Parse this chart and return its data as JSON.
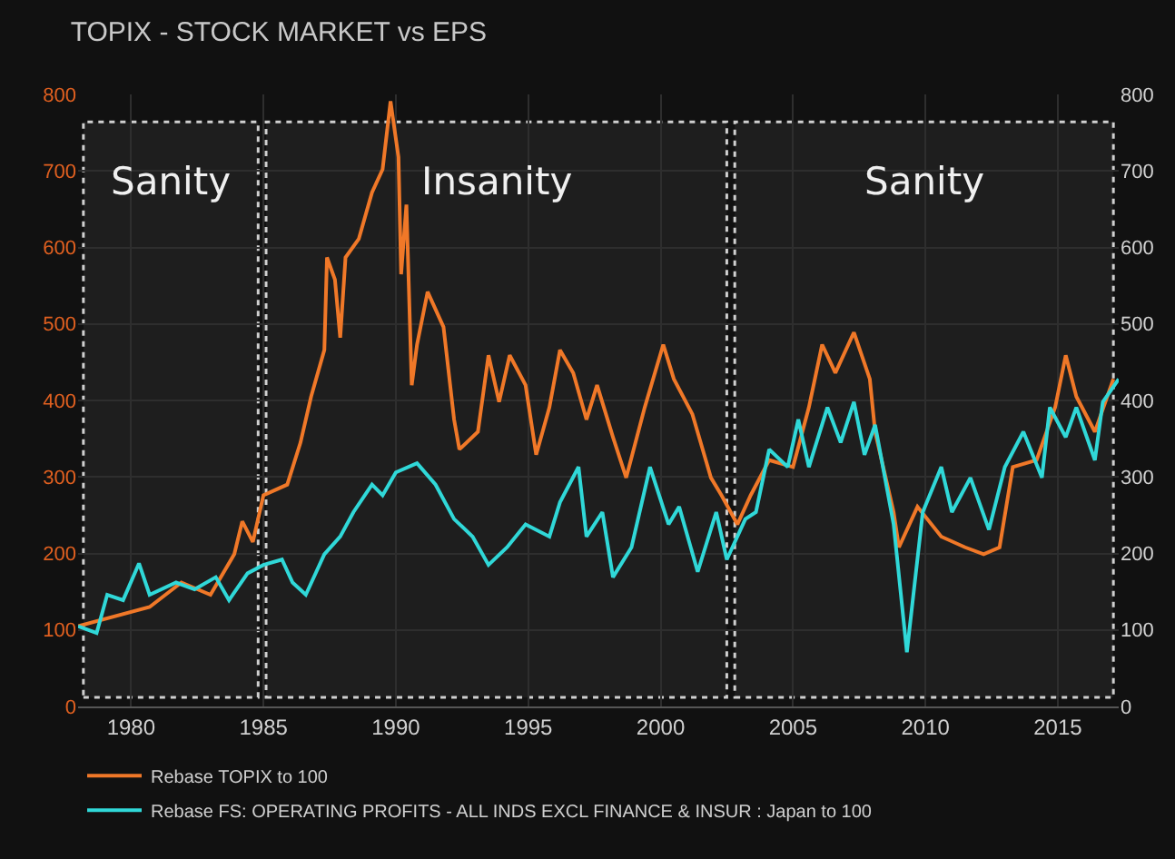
{
  "chart_data": {
    "type": "line",
    "title": "TOPIX - STOCK MARKET vs EPS",
    "xlim": [
      1978,
      2017.3
    ],
    "xticks": [
      1980,
      1985,
      1990,
      1995,
      2000,
      2005,
      2010,
      2015
    ],
    "ylim": [
      0,
      800
    ],
    "yticks": [
      0,
      100,
      200,
      300,
      400,
      500,
      600,
      700,
      800
    ],
    "y2lim": [
      0,
      800
    ],
    "y2ticks": [
      0,
      100,
      200,
      300,
      400,
      500,
      600,
      700,
      800
    ],
    "grid": true,
    "legend": "bottom",
    "line_style": "solid",
    "bands": [
      {
        "axis": "x",
        "from": 1978.2,
        "to": 1984.8,
        "label": "Sanity",
        "color": "#d0d0d0"
      },
      {
        "axis": "x",
        "from": 1985.1,
        "to": 2002.5,
        "label": "Insanity",
        "color": "#d0d0d0"
      },
      {
        "axis": "x",
        "from": 2002.8,
        "to": 2017.1,
        "label": "Sanity",
        "color": "#d0d0d0"
      }
    ],
    "series": [
      {
        "name": "Rebase TOPIX to 100",
        "color": "#f07828",
        "x": [
          1978.0,
          1980.7,
          1981.9,
          1983.0,
          1983.9,
          1984.2,
          1984.6,
          1985.0,
          1985.9,
          1986.4,
          1986.8,
          1987.3,
          1987.4,
          1987.7,
          1987.9,
          1988.1,
          1988.6,
          1989.1,
          1989.5,
          1989.8,
          1990.1,
          1990.2,
          1990.4,
          1990.6,
          1990.8,
          1991.2,
          1991.8,
          1992.2,
          1992.4,
          1993.1,
          1993.5,
          1993.9,
          1994.3,
          1994.9,
          1995.3,
          1995.8,
          1996.2,
          1996.7,
          1997.2,
          1997.6,
          1998.2,
          1998.7,
          1999.4,
          2000.1,
          2000.5,
          2001.2,
          2001.9,
          2002.3,
          2002.9,
          2003.4,
          2004.1,
          2005.0,
          2005.6,
          2006.1,
          2006.6,
          2007.3,
          2007.9,
          2008.1,
          2008.8,
          2009.0,
          2009.7,
          2010.6,
          2011.5,
          2012.2,
          2012.8,
          2013.3,
          2014.2,
          2014.9,
          2015.3,
          2015.7,
          2016.4,
          2017.1
        ],
        "values": [
          105,
          130,
          162,
          146,
          199,
          242,
          215,
          276,
          290,
          345,
          405,
          466,
          587,
          558,
          482,
          587,
          611,
          672,
          702,
          791,
          718,
          565,
          656,
          420,
          473,
          542,
          496,
          375,
          336,
          359,
          459,
          398,
          459,
          420,
          329,
          391,
          466,
          436,
          375,
          420,
          352,
          299,
          391,
          473,
          428,
          382,
          299,
          276,
          238,
          276,
          322,
          313,
          391,
          473,
          436,
          489,
          428,
          359,
          254,
          208,
          261,
          222,
          208,
          199,
          208,
          313,
          322,
          391,
          459,
          405,
          359,
          428
        ]
      },
      {
        "name": "Rebase FS: OPERATING PROFITS - ALL INDS EXCL FINANCE & INSUR : Japan to 100",
        "color": "#30d8d8",
        "x": [
          1978.0,
          1978.7,
          1979.1,
          1979.7,
          1980.3,
          1980.7,
          1981.7,
          1982.4,
          1983.2,
          1983.7,
          1984.4,
          1985.0,
          1985.7,
          1986.1,
          1986.6,
          1987.3,
          1987.9,
          1988.4,
          1989.1,
          1989.5,
          1990.0,
          1990.8,
          1991.5,
          1992.2,
          1992.9,
          1993.5,
          1994.2,
          1994.9,
          1995.8,
          1996.2,
          1996.9,
          1997.2,
          1997.8,
          1998.2,
          1998.9,
          1999.6,
          2000.3,
          2000.7,
          2001.4,
          2002.1,
          2002.5,
          2003.2,
          2003.6,
          2004.1,
          2004.8,
          2005.2,
          2005.6,
          2006.3,
          2006.8,
          2007.3,
          2007.7,
          2008.1,
          2008.8,
          2009.3,
          2009.9,
          2010.6,
          2011.0,
          2011.7,
          2012.4,
          2013.0,
          2013.7,
          2014.4,
          2014.7,
          2015.3,
          2015.7,
          2016.4,
          2016.7,
          2017.3
        ],
        "values": [
          105,
          96,
          146,
          139,
          187,
          146,
          162,
          153,
          169,
          139,
          174,
          185,
          192,
          162,
          146,
          199,
          222,
          254,
          290,
          276,
          306,
          318,
          290,
          245,
          222,
          185,
          208,
          238,
          222,
          267,
          313,
          222,
          254,
          169,
          208,
          313,
          238,
          261,
          176,
          254,
          192,
          245,
          254,
          336,
          313,
          375,
          313,
          391,
          345,
          398,
          329,
          368,
          238,
          71,
          254,
          313,
          254,
          299,
          231,
          313,
          359,
          299,
          391,
          352,
          391,
          322,
          398,
          428
        ]
      }
    ]
  }
}
